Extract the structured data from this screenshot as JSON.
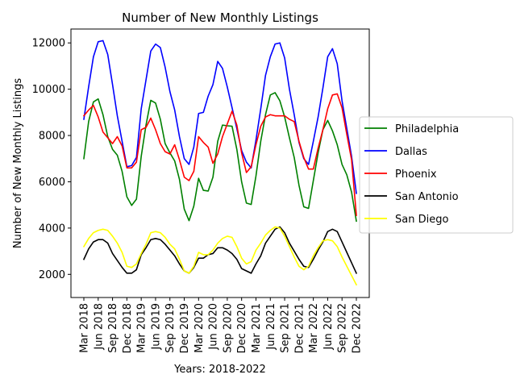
{
  "chart_data": {
    "type": "line",
    "title": "Number of New Monthly Listings",
    "xlabel": "Years: 2018-2022",
    "ylabel": "Number of New Monthly Listings",
    "x_tick_labels": [
      "Mar 2018",
      "Jun 2018",
      "Sep 2018",
      "Dec 2018",
      "Mar 2019",
      "Jun 2019",
      "Sep 2019",
      "Dec 2019",
      "Mar 2020",
      "Jun 2020",
      "Sep 2020",
      "Dec 2020",
      "Mar 2021",
      "Jun 2021",
      "Sep 2021",
      "Dec 2021",
      "Mar 2022",
      "Jun 2022",
      "Sep 2022",
      "Dec 2022"
    ],
    "y_ticks": [
      2000,
      4000,
      6000,
      8000,
      10000,
      12000
    ],
    "y_tick_labels": [
      "2000",
      "4000",
      "6000",
      "8000",
      "10000",
      "12000"
    ],
    "ylim": [
      1000,
      12600
    ],
    "grid": false,
    "legend_position": "right",
    "months": [
      "2018-03",
      "2018-04",
      "2018-05",
      "2018-06",
      "2018-07",
      "2018-08",
      "2018-09",
      "2018-10",
      "2018-11",
      "2018-12",
      "2019-01",
      "2019-02",
      "2019-03",
      "2019-04",
      "2019-05",
      "2019-06",
      "2019-07",
      "2019-08",
      "2019-09",
      "2019-10",
      "2019-11",
      "2019-12",
      "2020-01",
      "2020-02",
      "2020-03",
      "2020-04",
      "2020-05",
      "2020-06",
      "2020-07",
      "2020-08",
      "2020-09",
      "2020-10",
      "2020-11",
      "2020-12",
      "2021-01",
      "2021-02",
      "2021-03",
      "2021-04",
      "2021-05",
      "2021-06",
      "2021-07",
      "2021-08",
      "2021-09",
      "2021-10",
      "2021-11",
      "2021-12",
      "2022-01",
      "2022-02",
      "2022-03",
      "2022-04",
      "2022-05",
      "2022-06",
      "2022-07",
      "2022-08",
      "2022-09",
      "2022-10",
      "2022-11",
      "2022-12"
    ],
    "series": [
      {
        "name": "Philadelphia",
        "color": "#008000",
        "values": [
          7000,
          8600,
          9450,
          9580,
          8900,
          7950,
          7400,
          7150,
          6450,
          5350,
          4980,
          5250,
          7100,
          8450,
          9520,
          9400,
          8700,
          7650,
          7250,
          6900,
          6100,
          4820,
          4320,
          4950,
          6150,
          5630,
          5600,
          6200,
          7750,
          8450,
          8420,
          8400,
          7400,
          6000,
          5080,
          5020,
          6250,
          7750,
          8900,
          9750,
          9850,
          9500,
          8800,
          7900,
          7050,
          5850,
          4920,
          4850,
          6050,
          7250,
          8250,
          8650,
          8200,
          7600,
          6750,
          6300,
          5550,
          4300
        ]
      },
      {
        "name": "Dallas",
        "color": "#0000ff",
        "values": [
          8700,
          10100,
          11400,
          12050,
          12100,
          11500,
          10200,
          8850,
          7750,
          6650,
          6700,
          7050,
          9150,
          10400,
          11650,
          11950,
          11800,
          10950,
          9900,
          9100,
          7950,
          7000,
          6750,
          7500,
          8950,
          9000,
          9700,
          10200,
          11200,
          10900,
          10100,
          9200,
          8300,
          7350,
          6850,
          6600,
          7800,
          9150,
          10600,
          11400,
          11950,
          12000,
          11350,
          10000,
          8900,
          7700,
          7000,
          6750,
          7750,
          8800,
          10050,
          11400,
          11750,
          11100,
          9500,
          8300,
          7100,
          5500
        ]
      },
      {
        "name": "Phoenix",
        "color": "#ff0000",
        "values": [
          8850,
          9100,
          9300,
          8800,
          8150,
          7900,
          7650,
          7950,
          7550,
          6600,
          6600,
          6850,
          8250,
          8350,
          8750,
          8250,
          7650,
          7300,
          7200,
          7600,
          6950,
          6200,
          6050,
          6450,
          7950,
          7700,
          7500,
          6800,
          7200,
          7950,
          8500,
          9050,
          8450,
          7250,
          6400,
          6650,
          7600,
          8400,
          8800,
          8900,
          8850,
          8850,
          8850,
          8700,
          8600,
          7750,
          7050,
          6550,
          6550,
          7450,
          8250,
          9150,
          9750,
          9800,
          9200,
          8050,
          6950,
          4550
        ]
      },
      {
        "name": "San Antonio",
        "color": "#000000",
        "values": [
          2650,
          3100,
          3400,
          3500,
          3500,
          3350,
          2900,
          2600,
          2300,
          2050,
          2050,
          2200,
          2850,
          3150,
          3500,
          3550,
          3500,
          3300,
          3050,
          2800,
          2450,
          2150,
          2050,
          2300,
          2700,
          2700,
          2850,
          2900,
          3150,
          3150,
          3050,
          2900,
          2650,
          2250,
          2150,
          2050,
          2450,
          2800,
          3350,
          3650,
          3950,
          4050,
          3800,
          3350,
          3000,
          2650,
          2350,
          2300,
          2650,
          3050,
          3400,
          3850,
          3950,
          3850,
          3400,
          2950,
          2500,
          2050
        ]
      },
      {
        "name": "San Diego",
        "color": "#ffff00",
        "values": [
          3200,
          3550,
          3800,
          3900,
          3950,
          3900,
          3650,
          3350,
          2950,
          2350,
          2300,
          2450,
          2900,
          3300,
          3800,
          3850,
          3800,
          3600,
          3300,
          3100,
          2650,
          2150,
          2050,
          2350,
          2950,
          2850,
          2850,
          3050,
          3350,
          3550,
          3650,
          3600,
          3200,
          2700,
          2450,
          2550,
          3050,
          3350,
          3700,
          3900,
          4050,
          4000,
          3650,
          3200,
          2750,
          2350,
          2200,
          2350,
          2800,
          3150,
          3450,
          3500,
          3450,
          3200,
          2750,
          2350,
          1950,
          1550
        ]
      }
    ]
  }
}
